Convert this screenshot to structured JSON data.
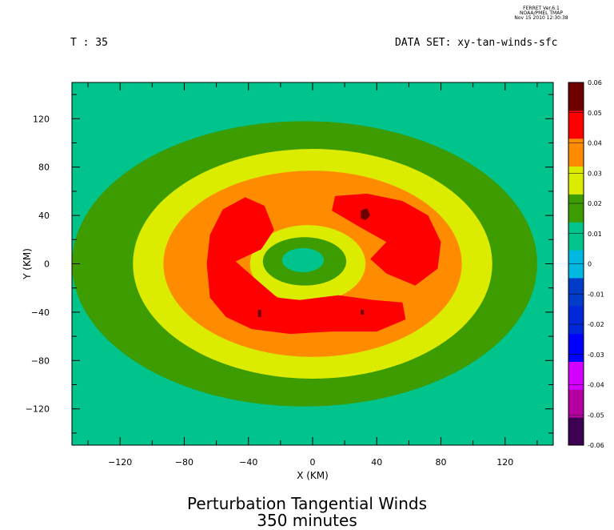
{
  "stamp": {
    "line1": "FERRET Ver.6.1",
    "line2": "NOAA/PMEL TMAP",
    "line3": "Nov 15 2010 12:30:38"
  },
  "header": {
    "time": "T : 35",
    "dataset": "DATA SET: xy-tan-winds-sfc"
  },
  "title": {
    "line1": "Perturbation Tangential Winds",
    "line2": "350 minutes"
  },
  "chart_data": {
    "type": "heatmap",
    "xlabel": "X (KM)",
    "ylabel": "Y (KM)",
    "xlim": [
      -150,
      150
    ],
    "ylim": [
      -150,
      150
    ],
    "xticks": [
      -120,
      -80,
      -40,
      0,
      40,
      80,
      120
    ],
    "yticks": [
      120,
      80,
      40,
      0,
      -40,
      -80,
      -120
    ],
    "colorbar": {
      "levels": [
        -0.06,
        -0.05,
        -0.04,
        -0.03,
        -0.02,
        -0.01,
        0,
        0.01,
        0.02,
        0.03,
        0.04,
        0.05,
        0.06
      ],
      "labels": [
        "0.06",
        "0.05",
        "0.04",
        "0.03",
        "0.02",
        "0.01",
        "0",
        "-0.01",
        "-0.02",
        "-0.03",
        "-0.04",
        "-0.05",
        "-0.06"
      ],
      "colors": [
        "#3c0050",
        "#b400a0",
        "#d400ff",
        "#0000ff",
        "#0028d8",
        "#003cc8",
        "#00b8e0",
        "#00c48c",
        "#3c9c00",
        "#dcec00",
        "#ff8c00",
        "#ff0000",
        "#6e0000"
      ]
    },
    "regions": [
      {
        "band": "0.01-0.02",
        "color": "#3c9c00",
        "cx": -5,
        "cy": 0,
        "rx": 145,
        "ry": 118
      },
      {
        "band": "0.02-0.03",
        "color": "#dcec00",
        "cx": 0,
        "cy": 0,
        "rx": 112,
        "ry": 95
      },
      {
        "band": "0.03-0.04",
        "color": "#ff8c00",
        "cx": 0,
        "cy": 0,
        "rx": 93,
        "ry": 77
      },
      {
        "band": "0.02-0.03",
        "color": "#dcec00",
        "cx": -3,
        "cy": 0,
        "rx": 36,
        "ry": 32
      },
      {
        "band": "0.01-0.02",
        "color": "#3c9c00",
        "cx": -5,
        "cy": 2,
        "rx": 26,
        "ry": 20
      },
      {
        "band": "0-0.01",
        "color": "#00c48c",
        "cx": -6,
        "cy": 3,
        "rx": 13,
        "ry": 10
      }
    ],
    "maxima": [
      {
        "value": "0.04-0.05",
        "color": "#ff0000",
        "points": [
          [
            -56,
            45
          ],
          [
            -42,
            55
          ],
          [
            -30,
            48
          ],
          [
            -24,
            28
          ],
          [
            -32,
            12
          ],
          [
            -48,
            2
          ],
          [
            -36,
            -12
          ],
          [
            -22,
            -28
          ],
          [
            -8,
            -30
          ],
          [
            16,
            -26
          ],
          [
            38,
            -30
          ],
          [
            56,
            -32
          ],
          [
            58,
            -46
          ],
          [
            40,
            -56
          ],
          [
            12,
            -56
          ],
          [
            -14,
            -58
          ],
          [
            -38,
            -54
          ],
          [
            -54,
            -44
          ],
          [
            -64,
            -28
          ],
          [
            -66,
            0
          ],
          [
            -64,
            24
          ]
        ]
      },
      {
        "value": "0.04-0.05",
        "color": "#ff0000",
        "points": [
          [
            14,
            56
          ],
          [
            34,
            58
          ],
          [
            56,
            52
          ],
          [
            72,
            40
          ],
          [
            80,
            18
          ],
          [
            78,
            -4
          ],
          [
            64,
            -18
          ],
          [
            46,
            -8
          ],
          [
            36,
            4
          ],
          [
            46,
            18
          ],
          [
            30,
            30
          ],
          [
            12,
            44
          ]
        ]
      },
      {
        "value": "0.05-0.06",
        "color": "#6e0000",
        "points": [
          [
            30,
            44
          ],
          [
            34,
            46
          ],
          [
            36,
            40
          ],
          [
            33,
            36
          ],
          [
            30,
            38
          ]
        ]
      },
      {
        "value": "0.05-0.06",
        "color": "#6e0000",
        "points": [
          [
            -34,
            -38
          ],
          [
            -32,
            -38
          ],
          [
            -32,
            -44
          ],
          [
            -34,
            -44
          ]
        ]
      },
      {
        "value": "0.05-0.06",
        "color": "#6e0000",
        "points": [
          [
            30,
            -38
          ],
          [
            32,
            -38
          ],
          [
            32,
            -42
          ],
          [
            30,
            -42
          ]
        ]
      }
    ]
  }
}
